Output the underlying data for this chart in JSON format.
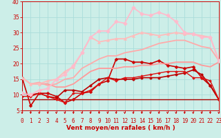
{
  "xlabel": "Vent moyen/en rafales ( km/h )",
  "xlim": [
    0,
    23
  ],
  "ylim": [
    5,
    40
  ],
  "yticks": [
    5,
    10,
    15,
    20,
    25,
    30,
    35,
    40
  ],
  "xticks": [
    0,
    1,
    2,
    3,
    4,
    5,
    6,
    7,
    8,
    9,
    10,
    11,
    12,
    13,
    14,
    15,
    16,
    17,
    18,
    19,
    20,
    21,
    22,
    23
  ],
  "bg_color": "#cceee8",
  "grid_color": "#aaddda",
  "series": [
    {
      "y": [
        8.5,
        8.5,
        8.5,
        8.5,
        8.5,
        8.5,
        8.5,
        8.5,
        8.5,
        8.5,
        8.5,
        8.5,
        8.5,
        8.5,
        8.5,
        8.5,
        8.5,
        8.5,
        8.5,
        8.5,
        8.5,
        8.5,
        8.5,
        8.5
      ],
      "color": "#aa0000",
      "lw": 1.0,
      "marker": null,
      "ls": "-"
    },
    {
      "y": [
        15.5,
        6.5,
        10.5,
        10.5,
        9.5,
        7.5,
        8.5,
        10.5,
        11.0,
        13.5,
        14.5,
        21.5,
        21.5,
        20.5,
        20.5,
        20.0,
        21.0,
        19.5,
        19.0,
        18.5,
        19.0,
        15.5,
        13.0,
        8.5
      ],
      "color": "#cc0000",
      "lw": 1.2,
      "marker": "D",
      "ms": 2.5,
      "ls": "-"
    },
    {
      "y": [
        10.5,
        10.0,
        10.5,
        9.5,
        9.0,
        11.5,
        11.5,
        11.0,
        13.0,
        15.0,
        15.5,
        15.0,
        15.0,
        15.0,
        15.5,
        15.5,
        15.5,
        16.0,
        16.5,
        17.0,
        18.0,
        16.5,
        13.0,
        8.5
      ],
      "color": "#bb0000",
      "lw": 1.2,
      "marker": "o",
      "ms": 2.5,
      "ls": "-"
    },
    {
      "y": [
        9.5,
        9.5,
        10.5,
        9.5,
        8.5,
        7.5,
        10.5,
        10.5,
        11.5,
        13.5,
        15.5,
        14.5,
        15.5,
        15.5,
        16.0,
        16.5,
        17.0,
        17.5,
        17.5,
        17.5,
        15.5,
        15.5,
        14.5,
        8.5
      ],
      "color": "#dd1111",
      "lw": 1.0,
      "marker": "D",
      "ms": 2.0,
      "ls": "-"
    },
    {
      "y": [
        15.5,
        13.5,
        13.5,
        13.5,
        12.5,
        12.5,
        13.5,
        15.5,
        17.5,
        18.5,
        18.5,
        18.5,
        19.0,
        19.0,
        19.5,
        19.5,
        20.0,
        20.0,
        20.5,
        20.5,
        20.5,
        19.5,
        19.0,
        20.5
      ],
      "color": "#ff9999",
      "lw": 1.3,
      "marker": null,
      "ls": "-"
    },
    {
      "y": [
        15.5,
        13.5,
        14.0,
        13.0,
        13.5,
        15.0,
        15.5,
        18.5,
        20.0,
        21.5,
        22.5,
        22.5,
        23.5,
        24.0,
        24.5,
        25.5,
        26.5,
        27.0,
        27.5,
        27.5,
        26.5,
        25.5,
        25.0,
        21.0
      ],
      "color": "#ffaaaa",
      "lw": 1.3,
      "marker": null,
      "ls": "-"
    },
    {
      "y": [
        15.5,
        13.5,
        13.5,
        14.5,
        15.0,
        17.5,
        19.0,
        23.5,
        28.5,
        27.0,
        27.5,
        28.0,
        28.0,
        29.0,
        30.0,
        29.5,
        29.0,
        29.5,
        30.0,
        29.5,
        29.5,
        29.0,
        28.5,
        21.0
      ],
      "color": "#ffbbbb",
      "lw": 1.3,
      "marker": "^",
      "ms": 3,
      "ls": "-"
    },
    {
      "y": [
        10.5,
        10.0,
        11.5,
        12.0,
        15.0,
        16.5,
        19.5,
        23.5,
        28.5,
        30.5,
        30.5,
        33.5,
        33.0,
        38.0,
        36.0,
        35.5,
        36.5,
        35.5,
        33.5,
        30.0,
        29.5,
        28.5,
        28.5,
        21.0
      ],
      "color": "#ffbbcc",
      "lw": 1.3,
      "marker": "D",
      "ms": 3,
      "ls": "-"
    }
  ],
  "label_color": "#cc0000",
  "tick_fontsize": 5.5,
  "xlabel_fontsize": 6.5
}
